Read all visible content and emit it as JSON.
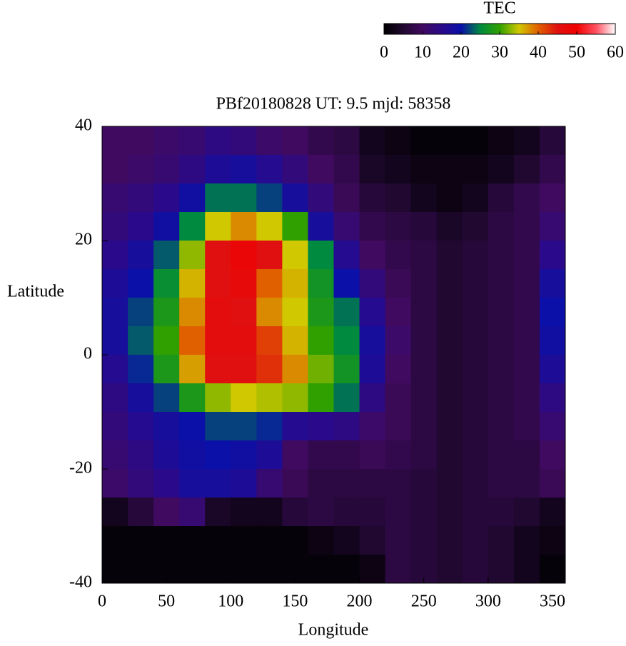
{
  "chart_data": {
    "type": "heatmap",
    "title": "PBf20180828  UT: 9.5  mjd: 58358",
    "xlabel": "Longitude",
    "ylabel": "Latitude",
    "x": [
      10,
      30,
      50,
      70,
      90,
      110,
      130,
      150,
      170,
      190,
      210,
      230,
      250,
      270,
      290,
      310,
      330,
      350
    ],
    "y": [
      37.5,
      32.5,
      27.5,
      22.5,
      17.5,
      12.5,
      7.5,
      2.5,
      -2.5,
      -7.5,
      -12.5,
      -17.5,
      -22.5,
      -27.5,
      -32.5,
      -37.5
    ],
    "values": [
      [
        10,
        10,
        11,
        12,
        14,
        13,
        11,
        10,
        8,
        7,
        3,
        2,
        1,
        1,
        1,
        2,
        3,
        6
      ],
      [
        10,
        11,
        12,
        14,
        17,
        18,
        16,
        13,
        10,
        8,
        4,
        3,
        2,
        2,
        2,
        3,
        5,
        8
      ],
      [
        12,
        13,
        15,
        19,
        24,
        24,
        22,
        18,
        13,
        9,
        6,
        5,
        3,
        2,
        3,
        6,
        8,
        10
      ],
      [
        13,
        15,
        19,
        25,
        35,
        38,
        35,
        30,
        18,
        12,
        8,
        7,
        6,
        4,
        5,
        7,
        8,
        12
      ],
      [
        15,
        18,
        23,
        33,
        45,
        48,
        45,
        35,
        25,
        16,
        10,
        8,
        7,
        5,
        6,
        7,
        8,
        15
      ],
      [
        17,
        20,
        26,
        36,
        45,
        47,
        40,
        36,
        27,
        20,
        13,
        9,
        7,
        5,
        6,
        7,
        8,
        18
      ],
      [
        18,
        22,
        28,
        38,
        46,
        45,
        38,
        35,
        28,
        24,
        16,
        10,
        7,
        5,
        6,
        7,
        8,
        20
      ],
      [
        18,
        23,
        30,
        40,
        46,
        46,
        42,
        36,
        30,
        25,
        18,
        11,
        7,
        5,
        6,
        7,
        8,
        19
      ],
      [
        16,
        21,
        28,
        37,
        45,
        45,
        43,
        38,
        32,
        27,
        17,
        10,
        7,
        5,
        6,
        7,
        8,
        17
      ],
      [
        14,
        18,
        22,
        28,
        33,
        35,
        34,
        33,
        30,
        24,
        14,
        9,
        7,
        5,
        6,
        7,
        8,
        14
      ],
      [
        13,
        16,
        18,
        20,
        22,
        22,
        21,
        16,
        15,
        14,
        11,
        9,
        7,
        5,
        6,
        7,
        8,
        12
      ],
      [
        12,
        14,
        17,
        19,
        20,
        19,
        17,
        10,
        8,
        8,
        9,
        8,
        7,
        5,
        6,
        7,
        7,
        10
      ],
      [
        11,
        13,
        15,
        18,
        18,
        17,
        12,
        9,
        7,
        7,
        7,
        7,
        6,
        5,
        6,
        7,
        7,
        9
      ],
      [
        3,
        6,
        10,
        12,
        4,
        3,
        3,
        6,
        7,
        6,
        6,
        7,
        6,
        5,
        6,
        6,
        5,
        3
      ],
      [
        1,
        1,
        1,
        1,
        1,
        1,
        1,
        1,
        2,
        3,
        5,
        7,
        6,
        5,
        6,
        5,
        3,
        2
      ],
      [
        1,
        1,
        1,
        1,
        1,
        1,
        1,
        1,
        1,
        1,
        2,
        7,
        6,
        5,
        6,
        5,
        3,
        1
      ]
    ],
    "xlim": [
      0,
      360
    ],
    "ylim": [
      -40,
      40
    ],
    "xticks": [
      0,
      50,
      100,
      150,
      200,
      250,
      300,
      350
    ],
    "yticks": [
      -40,
      -20,
      0,
      20,
      40
    ],
    "colorbar": {
      "title": "TEC",
      "lim": [
        0,
        60
      ],
      "ticks": [
        0,
        10,
        20,
        30,
        40,
        50,
        60
      ]
    },
    "colormap": [
      "#000000",
      "#200830",
      "#400a60",
      "#2a0a8a",
      "#0a10a8",
      "#008a40",
      "#30a000",
      "#d0c800",
      "#e06000",
      "#e01010",
      "#f00000",
      "#ff5060",
      "#ffffff"
    ]
  }
}
